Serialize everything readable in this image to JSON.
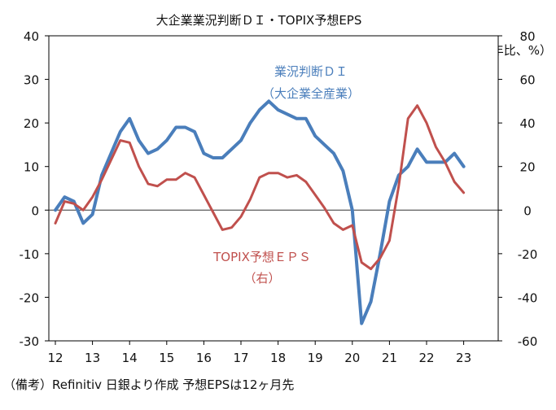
{
  "chart_data": {
    "type": "line",
    "title": "大企業業況判断ＤＩ・TOPIX予想EPS",
    "right_axis_label": "（前年比、%）",
    "note": "（備考）Refinitiv 日銀より作成 予想EPSは12ヶ月先",
    "x_ticks": [
      "12",
      "13",
      "14",
      "15",
      "16",
      "17",
      "18",
      "19",
      "20",
      "21",
      "22",
      "23"
    ],
    "x_tick_values": [
      2012,
      2013,
      2014,
      2015,
      2016,
      2017,
      2018,
      2019,
      2020,
      2021,
      2022,
      2023
    ],
    "xlim": [
      2012,
      2024
    ],
    "y_left_lim": [
      -30,
      40
    ],
    "y_left_ticks": [
      "-30",
      "-20",
      "-10",
      "0",
      "10",
      "20",
      "30",
      "40"
    ],
    "y_left_tick_values": [
      -30,
      -20,
      -10,
      0,
      10,
      20,
      30,
      40
    ],
    "y_right_lim": [
      -60,
      80
    ],
    "y_right_ticks": [
      "-60",
      "-40",
      "-20",
      "0",
      "20",
      "40",
      "60",
      "80"
    ],
    "y_right_tick_values": [
      -60,
      -40,
      -20,
      0,
      20,
      40,
      60,
      80
    ],
    "series": [
      {
        "name": "業況判断ＤＩ",
        "label_lines": [
          "業況判断ＤＩ",
          "（大企業全産業）"
        ],
        "axis": "left",
        "color": "#4a7ebb",
        "x": [
          2012.0,
          2012.25,
          2012.5,
          2012.75,
          2013.0,
          2013.25,
          2013.5,
          2013.75,
          2014.0,
          2014.25,
          2014.5,
          2014.75,
          2015.0,
          2015.25,
          2015.5,
          2015.75,
          2016.0,
          2016.25,
          2016.5,
          2016.75,
          2017.0,
          2017.25,
          2017.5,
          2017.75,
          2018.0,
          2018.25,
          2018.5,
          2018.75,
          2019.0,
          2019.25,
          2019.5,
          2019.75,
          2020.0,
          2020.25,
          2020.5,
          2020.75,
          2021.0,
          2021.25,
          2021.5,
          2021.75,
          2022.0,
          2022.25,
          2022.5,
          2022.75,
          2023.0
        ],
        "values": [
          0,
          3,
          2,
          -3,
          -1,
          8,
          13,
          18,
          21,
          16,
          13,
          14,
          16,
          19,
          19,
          18,
          13,
          12,
          12,
          14,
          16,
          20,
          23,
          25,
          23,
          22,
          21,
          21,
          17,
          15,
          13,
          9,
          0,
          -26,
          -21,
          -10,
          2,
          8,
          10,
          14,
          11,
          11,
          11,
          13,
          10
        ]
      },
      {
        "name": "TOPIX予想ＥＰＳ",
        "label_lines": [
          "TOPIX予想ＥＰＳ",
          "（右）"
        ],
        "axis": "right",
        "color": "#c0504d",
        "x": [
          2012.0,
          2012.25,
          2012.5,
          2012.75,
          2013.0,
          2013.25,
          2013.5,
          2013.75,
          2014.0,
          2014.25,
          2014.5,
          2014.75,
          2015.0,
          2015.25,
          2015.5,
          2015.75,
          2016.0,
          2016.25,
          2016.5,
          2016.75,
          2017.0,
          2017.25,
          2017.5,
          2017.75,
          2018.0,
          2018.25,
          2018.5,
          2018.75,
          2019.0,
          2019.25,
          2019.5,
          2019.75,
          2020.0,
          2020.25,
          2020.5,
          2020.75,
          2021.0,
          2021.25,
          2021.5,
          2021.75,
          2022.0,
          2022.25,
          2022.5,
          2022.75,
          2023.0
        ],
        "values": [
          -6,
          4,
          3,
          0,
          6,
          14,
          23,
          32,
          31,
          20,
          12,
          11,
          14,
          14,
          17,
          15,
          7,
          -1,
          -9,
          -8,
          -3,
          5,
          15,
          17,
          17,
          15,
          16,
          13,
          7,
          1,
          -6,
          -9,
          -7,
          -24,
          -27,
          -22,
          -14,
          11,
          42,
          48,
          40,
          29,
          22,
          13,
          8
        ]
      }
    ],
    "zero_line": true
  }
}
